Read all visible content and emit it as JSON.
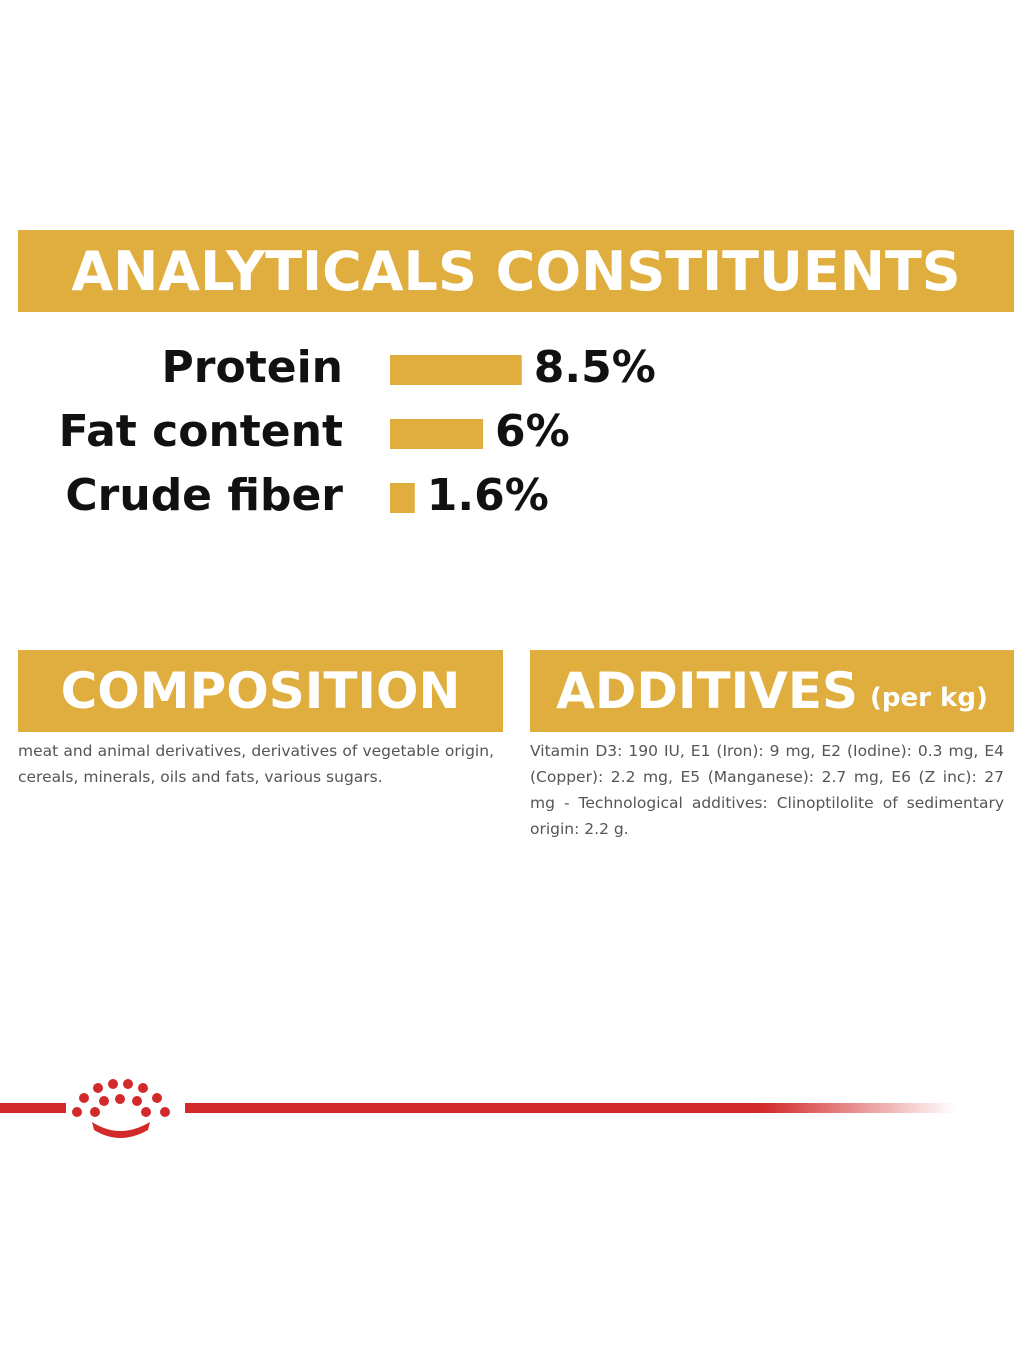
{
  "header": {
    "title": "ANALYTICALS CONSTITUENTS"
  },
  "chart_data": {
    "type": "bar",
    "orientation": "horizontal",
    "color": "#dfae3e",
    "categories": [
      "Protein",
      "Fat content",
      "Crude fiber"
    ],
    "values": [
      8.5,
      6,
      1.6
    ],
    "value_labels": [
      "8.5%",
      "6%",
      "1.6%"
    ]
  },
  "composition": {
    "title": "COMPOSITION",
    "text": "meat and animal derivatives, derivatives of vegetable origin, cereals, minerals, oils and fats, various sugars."
  },
  "additives": {
    "title": "ADDITIVES",
    "unit": "(per kg)",
    "text": "Vitamin D3: 190 IU, E1 (Iron): 9 mg, E2 (Iodine): 0.3 mg, E4 (Copper): 2.2 mg, E5 (Manganese): 2.7 mg, E6 (Z inc): 27 mg - Technological additives: Clinoptilolite of sedimentary origin: 2.2 g."
  }
}
